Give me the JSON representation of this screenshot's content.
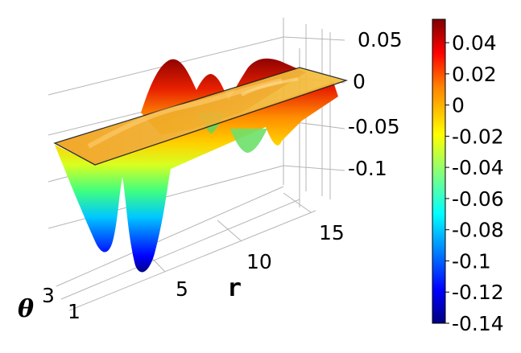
{
  "chart_data": {
    "type": "surface",
    "xlabel": "r",
    "ylabel": "θ",
    "x_ticks": [
      "5",
      "10",
      "15"
    ],
    "y_ticks": [
      "1",
      "3"
    ],
    "z_ticks": [
      "0.05",
      "0",
      "-0.05",
      "-0.1"
    ],
    "zlim": [
      -0.14,
      0.055
    ],
    "grid": true,
    "colorbar": {
      "ticks": [
        "0.04",
        "0.02",
        "0",
        "-0.02",
        "-0.04",
        "-0.06",
        "-0.08",
        "-0.1",
        "-0.12",
        "-0.14"
      ],
      "range": [
        -0.14,
        0.055
      ],
      "colormap": "jet"
    },
    "surface_profile": {
      "r": [
        1,
        2,
        3,
        3.6,
        4,
        5,
        6,
        7,
        8,
        9,
        10,
        11,
        12,
        13,
        14,
        15,
        16
      ],
      "value": [
        -0.02,
        -0.09,
        -0.135,
        -0.1,
        -0.06,
        -0.14,
        -0.07,
        0.045,
        0.01,
        0.03,
        -0.02,
        -0.045,
        0.02,
        0.035,
        0.008,
        0.006,
        0.0
      ]
    }
  }
}
